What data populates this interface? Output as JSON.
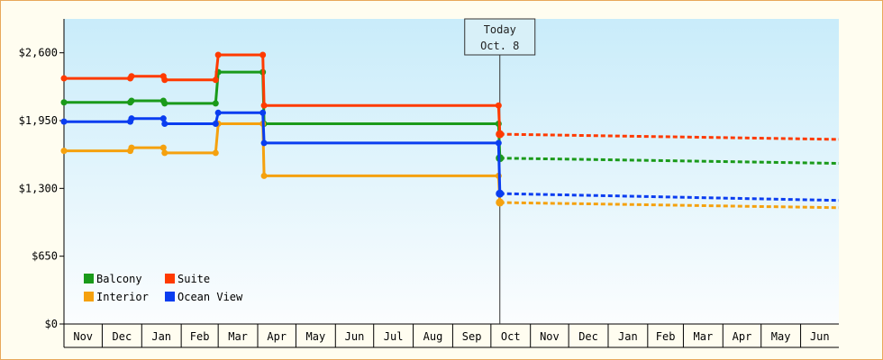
{
  "chart_data": {
    "type": "line",
    "title": "",
    "xlabel": "",
    "ylabel": "",
    "ylim": [
      0,
      2925
    ],
    "y_ticks": [
      {
        "value": 0,
        "label": "$0"
      },
      {
        "value": 650,
        "label": "$650"
      },
      {
        "value": 1300,
        "label": "$1,300"
      },
      {
        "value": 1950,
        "label": "$1,950"
      },
      {
        "value": 2600,
        "label": "$2,600"
      }
    ],
    "x_range": [
      "2023-11-01",
      "2025-07-01"
    ],
    "x_ticks": [
      {
        "date": "2023-11-01",
        "label": "Nov"
      },
      {
        "date": "2023-12-01",
        "label": "Dec"
      },
      {
        "date": "2024-01-01",
        "label": "Jan"
      },
      {
        "date": "2024-02-01",
        "label": "Feb"
      },
      {
        "date": "2024-03-01",
        "label": "Mar"
      },
      {
        "date": "2024-04-01",
        "label": "Apr"
      },
      {
        "date": "2024-05-01",
        "label": "May"
      },
      {
        "date": "2024-06-01",
        "label": "Jun"
      },
      {
        "date": "2024-07-01",
        "label": "Jul"
      },
      {
        "date": "2024-08-01",
        "label": "Aug"
      },
      {
        "date": "2024-09-01",
        "label": "Sep"
      },
      {
        "date": "2024-10-01",
        "label": "Oct"
      },
      {
        "date": "2024-11-01",
        "label": "Nov"
      },
      {
        "date": "2024-12-01",
        "label": "Dec"
      },
      {
        "date": "2025-01-01",
        "label": "Jan"
      },
      {
        "date": "2025-02-01",
        "label": "Feb"
      },
      {
        "date": "2025-03-01",
        "label": "Mar"
      },
      {
        "date": "2025-04-01",
        "label": "Apr"
      },
      {
        "date": "2025-05-01",
        "label": "May"
      },
      {
        "date": "2025-06-01",
        "label": "Jun"
      }
    ],
    "today": {
      "date": "2024-10-08",
      "label_line1": "Today",
      "label_line2": "Oct. 8"
    },
    "grid": false,
    "legend_position": "bottom-left",
    "series": [
      {
        "name": "Balcony",
        "color": "#1a9a1a",
        "history": [
          {
            "x": "2023-11-01",
            "y": 2125
          },
          {
            "x": "2023-12-23",
            "y": 2125
          },
          {
            "x": "2023-12-24",
            "y": 2140
          },
          {
            "x": "2024-01-18",
            "y": 2140
          },
          {
            "x": "2024-01-19",
            "y": 2115
          },
          {
            "x": "2024-02-28",
            "y": 2115
          },
          {
            "x": "2024-03-01",
            "y": 2415
          },
          {
            "x": "2024-04-05",
            "y": 2415
          },
          {
            "x": "2024-04-06",
            "y": 1920
          },
          {
            "x": "2024-10-07",
            "y": 1920
          },
          {
            "x": "2024-10-08",
            "y": 1590
          }
        ],
        "forecast": [
          {
            "x": "2024-10-08",
            "y": 1590
          },
          {
            "x": "2025-07-01",
            "y": 1540
          }
        ]
      },
      {
        "name": "Suite",
        "color": "#ff3a00",
        "history": [
          {
            "x": "2023-11-01",
            "y": 2355
          },
          {
            "x": "2023-12-23",
            "y": 2355
          },
          {
            "x": "2023-12-24",
            "y": 2375
          },
          {
            "x": "2024-01-18",
            "y": 2375
          },
          {
            "x": "2024-01-19",
            "y": 2340
          },
          {
            "x": "2024-02-28",
            "y": 2340
          },
          {
            "x": "2024-03-01",
            "y": 2580
          },
          {
            "x": "2024-04-05",
            "y": 2580
          },
          {
            "x": "2024-04-06",
            "y": 2095
          },
          {
            "x": "2024-10-07",
            "y": 2095
          },
          {
            "x": "2024-10-08",
            "y": 1820
          }
        ],
        "forecast": [
          {
            "x": "2024-10-08",
            "y": 1820
          },
          {
            "x": "2025-07-01",
            "y": 1770
          }
        ]
      },
      {
        "name": "Interior",
        "color": "#f5a10e",
        "history": [
          {
            "x": "2023-11-01",
            "y": 1660
          },
          {
            "x": "2023-12-23",
            "y": 1660
          },
          {
            "x": "2023-12-24",
            "y": 1690
          },
          {
            "x": "2024-01-18",
            "y": 1690
          },
          {
            "x": "2024-01-19",
            "y": 1640
          },
          {
            "x": "2024-02-28",
            "y": 1640
          },
          {
            "x": "2024-03-01",
            "y": 1920
          },
          {
            "x": "2024-04-05",
            "y": 1920
          },
          {
            "x": "2024-04-06",
            "y": 1420
          },
          {
            "x": "2024-10-07",
            "y": 1420
          },
          {
            "x": "2024-10-08",
            "y": 1165
          }
        ],
        "forecast": [
          {
            "x": "2024-10-08",
            "y": 1165
          },
          {
            "x": "2025-07-01",
            "y": 1115
          }
        ]
      },
      {
        "name": "Ocean View",
        "color": "#0a3df0",
        "history": [
          {
            "x": "2023-11-01",
            "y": 1940
          },
          {
            "x": "2023-12-23",
            "y": 1940
          },
          {
            "x": "2023-12-24",
            "y": 1970
          },
          {
            "x": "2024-01-18",
            "y": 1970
          },
          {
            "x": "2024-01-19",
            "y": 1920
          },
          {
            "x": "2024-02-28",
            "y": 1920
          },
          {
            "x": "2024-03-01",
            "y": 2025
          },
          {
            "x": "2024-04-05",
            "y": 2025
          },
          {
            "x": "2024-04-06",
            "y": 1735
          },
          {
            "x": "2024-10-07",
            "y": 1735
          },
          {
            "x": "2024-10-08",
            "y": 1250
          }
        ],
        "forecast": [
          {
            "x": "2024-10-08",
            "y": 1250
          },
          {
            "x": "2025-07-01",
            "y": 1185
          }
        ]
      }
    ]
  }
}
